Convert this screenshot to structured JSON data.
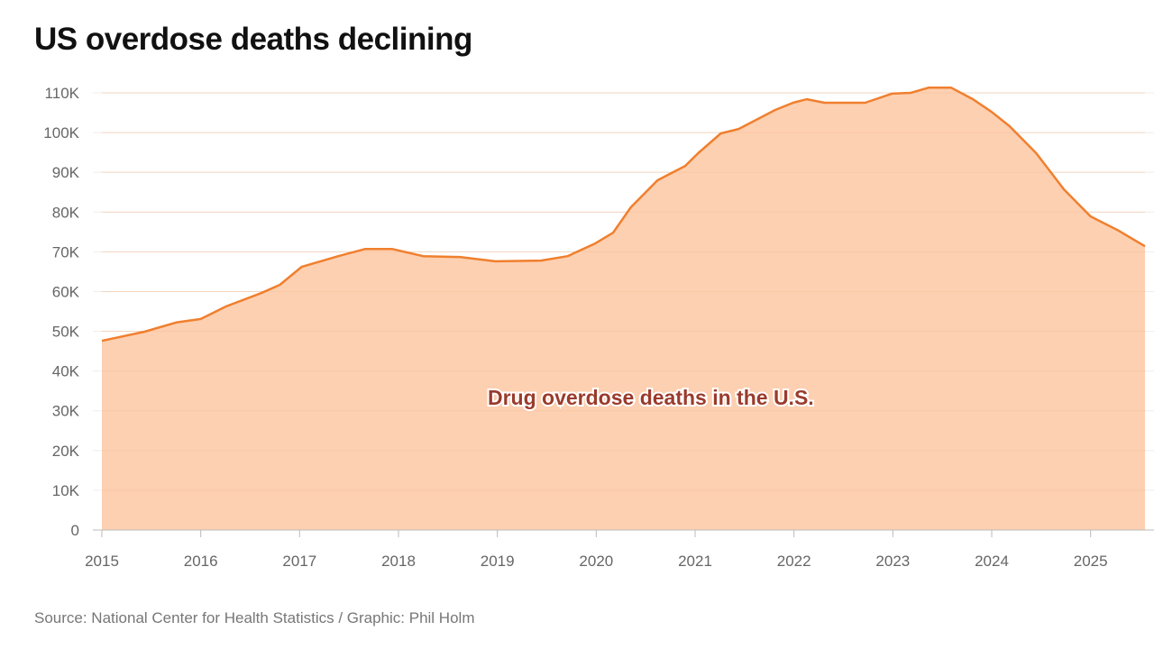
{
  "chart_data": {
    "type": "area",
    "title": "US overdose deaths declining",
    "source": "Source: National Center for Health Statistics / Graphic: Phil Holm",
    "annotation": "Drug overdose deaths in the U.S.",
    "xlabel": "",
    "ylabel": "",
    "xlim": [
      2015,
      2025.55
    ],
    "ylim": [
      0,
      110000
    ],
    "grid": true,
    "x_ticks": [
      "2015",
      "2016",
      "2017",
      "2018",
      "2019",
      "2020",
      "2021",
      "2022",
      "2023",
      "2024",
      "2025"
    ],
    "y_ticks": [
      "0",
      "10K",
      "20K",
      "30K",
      "40K",
      "50K",
      "60K",
      "70K",
      "80K",
      "90K",
      "100K",
      "110K"
    ],
    "colors": {
      "line": "#f07f2e",
      "fill": "#fdd0b1",
      "annotation": "#9a3b2c"
    },
    "x": [
      2015.0,
      2015.43,
      2015.75,
      2016.0,
      2016.25,
      2016.61,
      2016.8,
      2017.02,
      2017.39,
      2017.66,
      2017.94,
      2018.25,
      2018.62,
      2018.98,
      2019.44,
      2019.71,
      2019.99,
      2020.17,
      2020.35,
      2020.62,
      2020.9,
      2021.03,
      2021.26,
      2021.44,
      2021.81,
      2021.99,
      2022.13,
      2022.31,
      2022.72,
      2022.99,
      2023.18,
      2023.36,
      2023.59,
      2023.81,
      2024.0,
      2024.18,
      2024.45,
      2024.73,
      2025.0,
      2025.27,
      2025.55
    ],
    "values": [
      47600,
      49900,
      52200,
      53100,
      56200,
      59600,
      61700,
      66200,
      68900,
      70700,
      70700,
      68900,
      68700,
      67600,
      67800,
      68900,
      72100,
      74800,
      81200,
      88000,
      91600,
      94800,
      99800,
      100900,
      105700,
      107500,
      108400,
      107500,
      107500,
      109800,
      110000,
      111300,
      111300,
      108400,
      105200,
      101600,
      94800,
      85700,
      78900,
      75500,
      71400
    ]
  }
}
